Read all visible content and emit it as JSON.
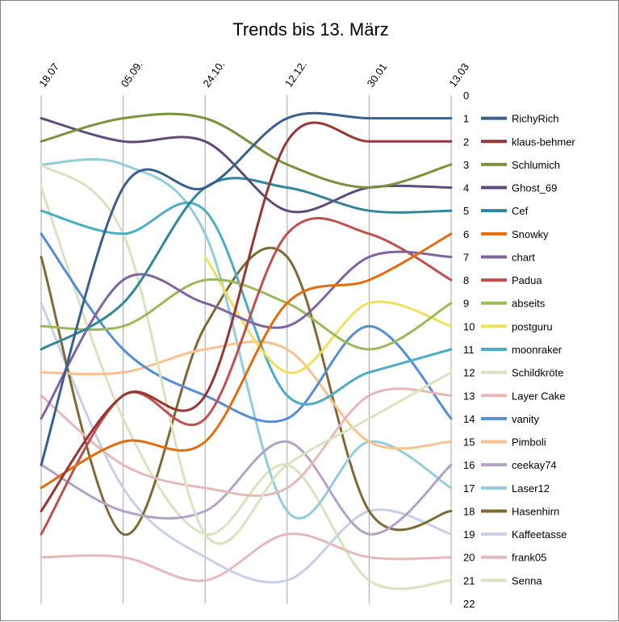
{
  "chart_data": {
    "type": "line",
    "title": "Trends bis 13. März",
    "x": [
      "18.07",
      "05.09.",
      "24.10.",
      "12.12.",
      "30.01",
      "13.03"
    ],
    "xlabel": "",
    "ylabel": "",
    "y_ticks": [
      0,
      1,
      2,
      3,
      4,
      5,
      6,
      7,
      8,
      9,
      10,
      11,
      12,
      13,
      14,
      15,
      16,
      17,
      18,
      19,
      20,
      21,
      22
    ],
    "ylim": [
      0,
      22
    ],
    "y_inverted": true,
    "y_axis_position": "right",
    "grid": "vertical",
    "legend_position": "right",
    "series": [
      {
        "name": "RichyRich",
        "color": "#376092",
        "values": [
          16,
          4,
          4,
          1,
          1,
          1
        ]
      },
      {
        "name": "klaus-behmer",
        "color": "#963734",
        "values": [
          18,
          13,
          13,
          2,
          2,
          2
        ]
      },
      {
        "name": "Schlumich",
        "color": "#77933C",
        "values": [
          2,
          1,
          1,
          3,
          4,
          3
        ]
      },
      {
        "name": "Ghost_69",
        "color": "#604A7B",
        "values": [
          1,
          2,
          2,
          5,
          4,
          4
        ]
      },
      {
        "name": "Cef",
        "color": "#31859C",
        "values": [
          11,
          9,
          4,
          4,
          5,
          5
        ]
      },
      {
        "name": "Snowky",
        "color": "#E46C0A",
        "values": [
          17,
          15,
          15,
          9,
          8,
          6
        ]
      },
      {
        "name": "chart",
        "color": "#8064A2",
        "values": [
          14,
          8,
          9,
          10,
          7,
          7
        ]
      },
      {
        "name": "Padua",
        "color": "#C0504D",
        "values": [
          19,
          13,
          14,
          6,
          6,
          8
        ]
      },
      {
        "name": "abseits",
        "color": "#9BBB59",
        "values": [
          10,
          10,
          8,
          9,
          11,
          9
        ]
      },
      {
        "name": "postguru",
        "color": "#F2E05A",
        "values": [
          null,
          null,
          7,
          12,
          9,
          10
        ]
      },
      {
        "name": "moonraker",
        "color": "#4BACC6",
        "values": [
          5,
          6,
          5,
          13,
          12,
          11
        ]
      },
      {
        "name": "Schildkröte",
        "color": "#D7E4BD",
        "values": [
          3,
          6,
          19,
          16,
          14,
          12
        ]
      },
      {
        "name": "Layer Cake",
        "color": "#E6B9B8",
        "values": [
          13,
          16,
          17,
          17,
          13,
          13
        ]
      },
      {
        "name": "vanity",
        "color": "#558ED5",
        "values": [
          6,
          11,
          13,
          14,
          10,
          14
        ]
      },
      {
        "name": "Pimboli",
        "color": "#FAC090",
        "values": [
          12,
          12,
          11,
          11,
          15,
          15
        ]
      },
      {
        "name": "ceekay74",
        "color": "#B3A2C7",
        "values": [
          16,
          18,
          18,
          15,
          19,
          16
        ]
      },
      {
        "name": "Laser12",
        "color": "#93CDDD",
        "values": [
          3,
          3,
          6,
          18,
          15,
          17
        ]
      },
      {
        "name": "Hasenhirn",
        "color": "#7F6A36",
        "values": [
          7,
          19,
          10,
          7,
          18,
          18
        ]
      },
      {
        "name": "Kaffeetasse",
        "color": "#C6D0E9",
        "values": [
          9,
          17,
          20,
          21,
          18,
          19
        ]
      },
      {
        "name": "frank05",
        "color": "#E6B9B8",
        "values": [
          20,
          20,
          21,
          19,
          20,
          20
        ]
      },
      {
        "name": "Senna",
        "color": "#D7E4BD",
        "values": [
          4,
          14,
          19,
          16,
          21,
          21
        ]
      }
    ]
  }
}
